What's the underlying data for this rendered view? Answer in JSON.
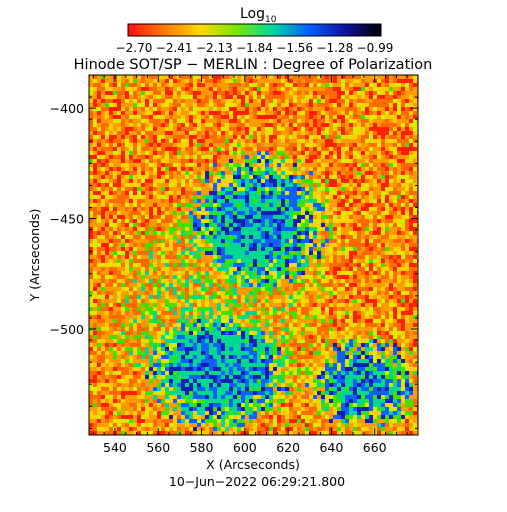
{
  "colorbar": {
    "label_main": "Log",
    "label_sub": "10",
    "ticks": [
      "−2.70",
      "−2.41",
      "−2.13",
      "−1.84",
      "−1.56",
      "−1.28",
      "−0.99"
    ],
    "colors": [
      "#ff1010",
      "#ff7a00",
      "#ffd800",
      "#7ae800",
      "#00d8a0",
      "#0060ff",
      "#1010a0",
      "#000000"
    ]
  },
  "chart_data": {
    "type": "heatmap",
    "title": "Hinode SOT/SP − MERLIN : Degree of Polarization",
    "xlabel": "X (Arcseconds)",
    "ylabel": "Y (Arcseconds)",
    "timestamp": "10−Jun−2022 06:29:21.800",
    "scale": "log10",
    "value_range": [
      -2.7,
      -0.99
    ],
    "xlim": [
      528,
      680
    ],
    "ylim": [
      -548,
      -385
    ],
    "x_ticks": [
      540,
      560,
      580,
      600,
      620,
      640,
      660
    ],
    "x_tick_labels": [
      "540",
      "560",
      "580",
      "600",
      "620",
      "640",
      "660"
    ],
    "y_ticks": [
      -400,
      -450,
      -500
    ],
    "y_tick_labels": [
      "−400",
      "−450",
      "−500"
    ],
    "features": [
      {
        "type": "high-polarization network (blue)",
        "x_range": [
          555,
          620
        ],
        "y_range": [
          -545,
          -495
        ]
      },
      {
        "type": "high-polarization network (blue)",
        "x_range": [
          575,
          640
        ],
        "y_range": [
          -480,
          -420
        ]
      },
      {
        "type": "high-polarization network (blue)",
        "x_range": [
          630,
          680
        ],
        "y_range": [
          -545,
          -505
        ]
      },
      {
        "type": "intermediate polarization lane (green)",
        "x_range": [
          530,
          640
        ],
        "y_range": [
          -545,
          -440
        ]
      }
    ]
  }
}
